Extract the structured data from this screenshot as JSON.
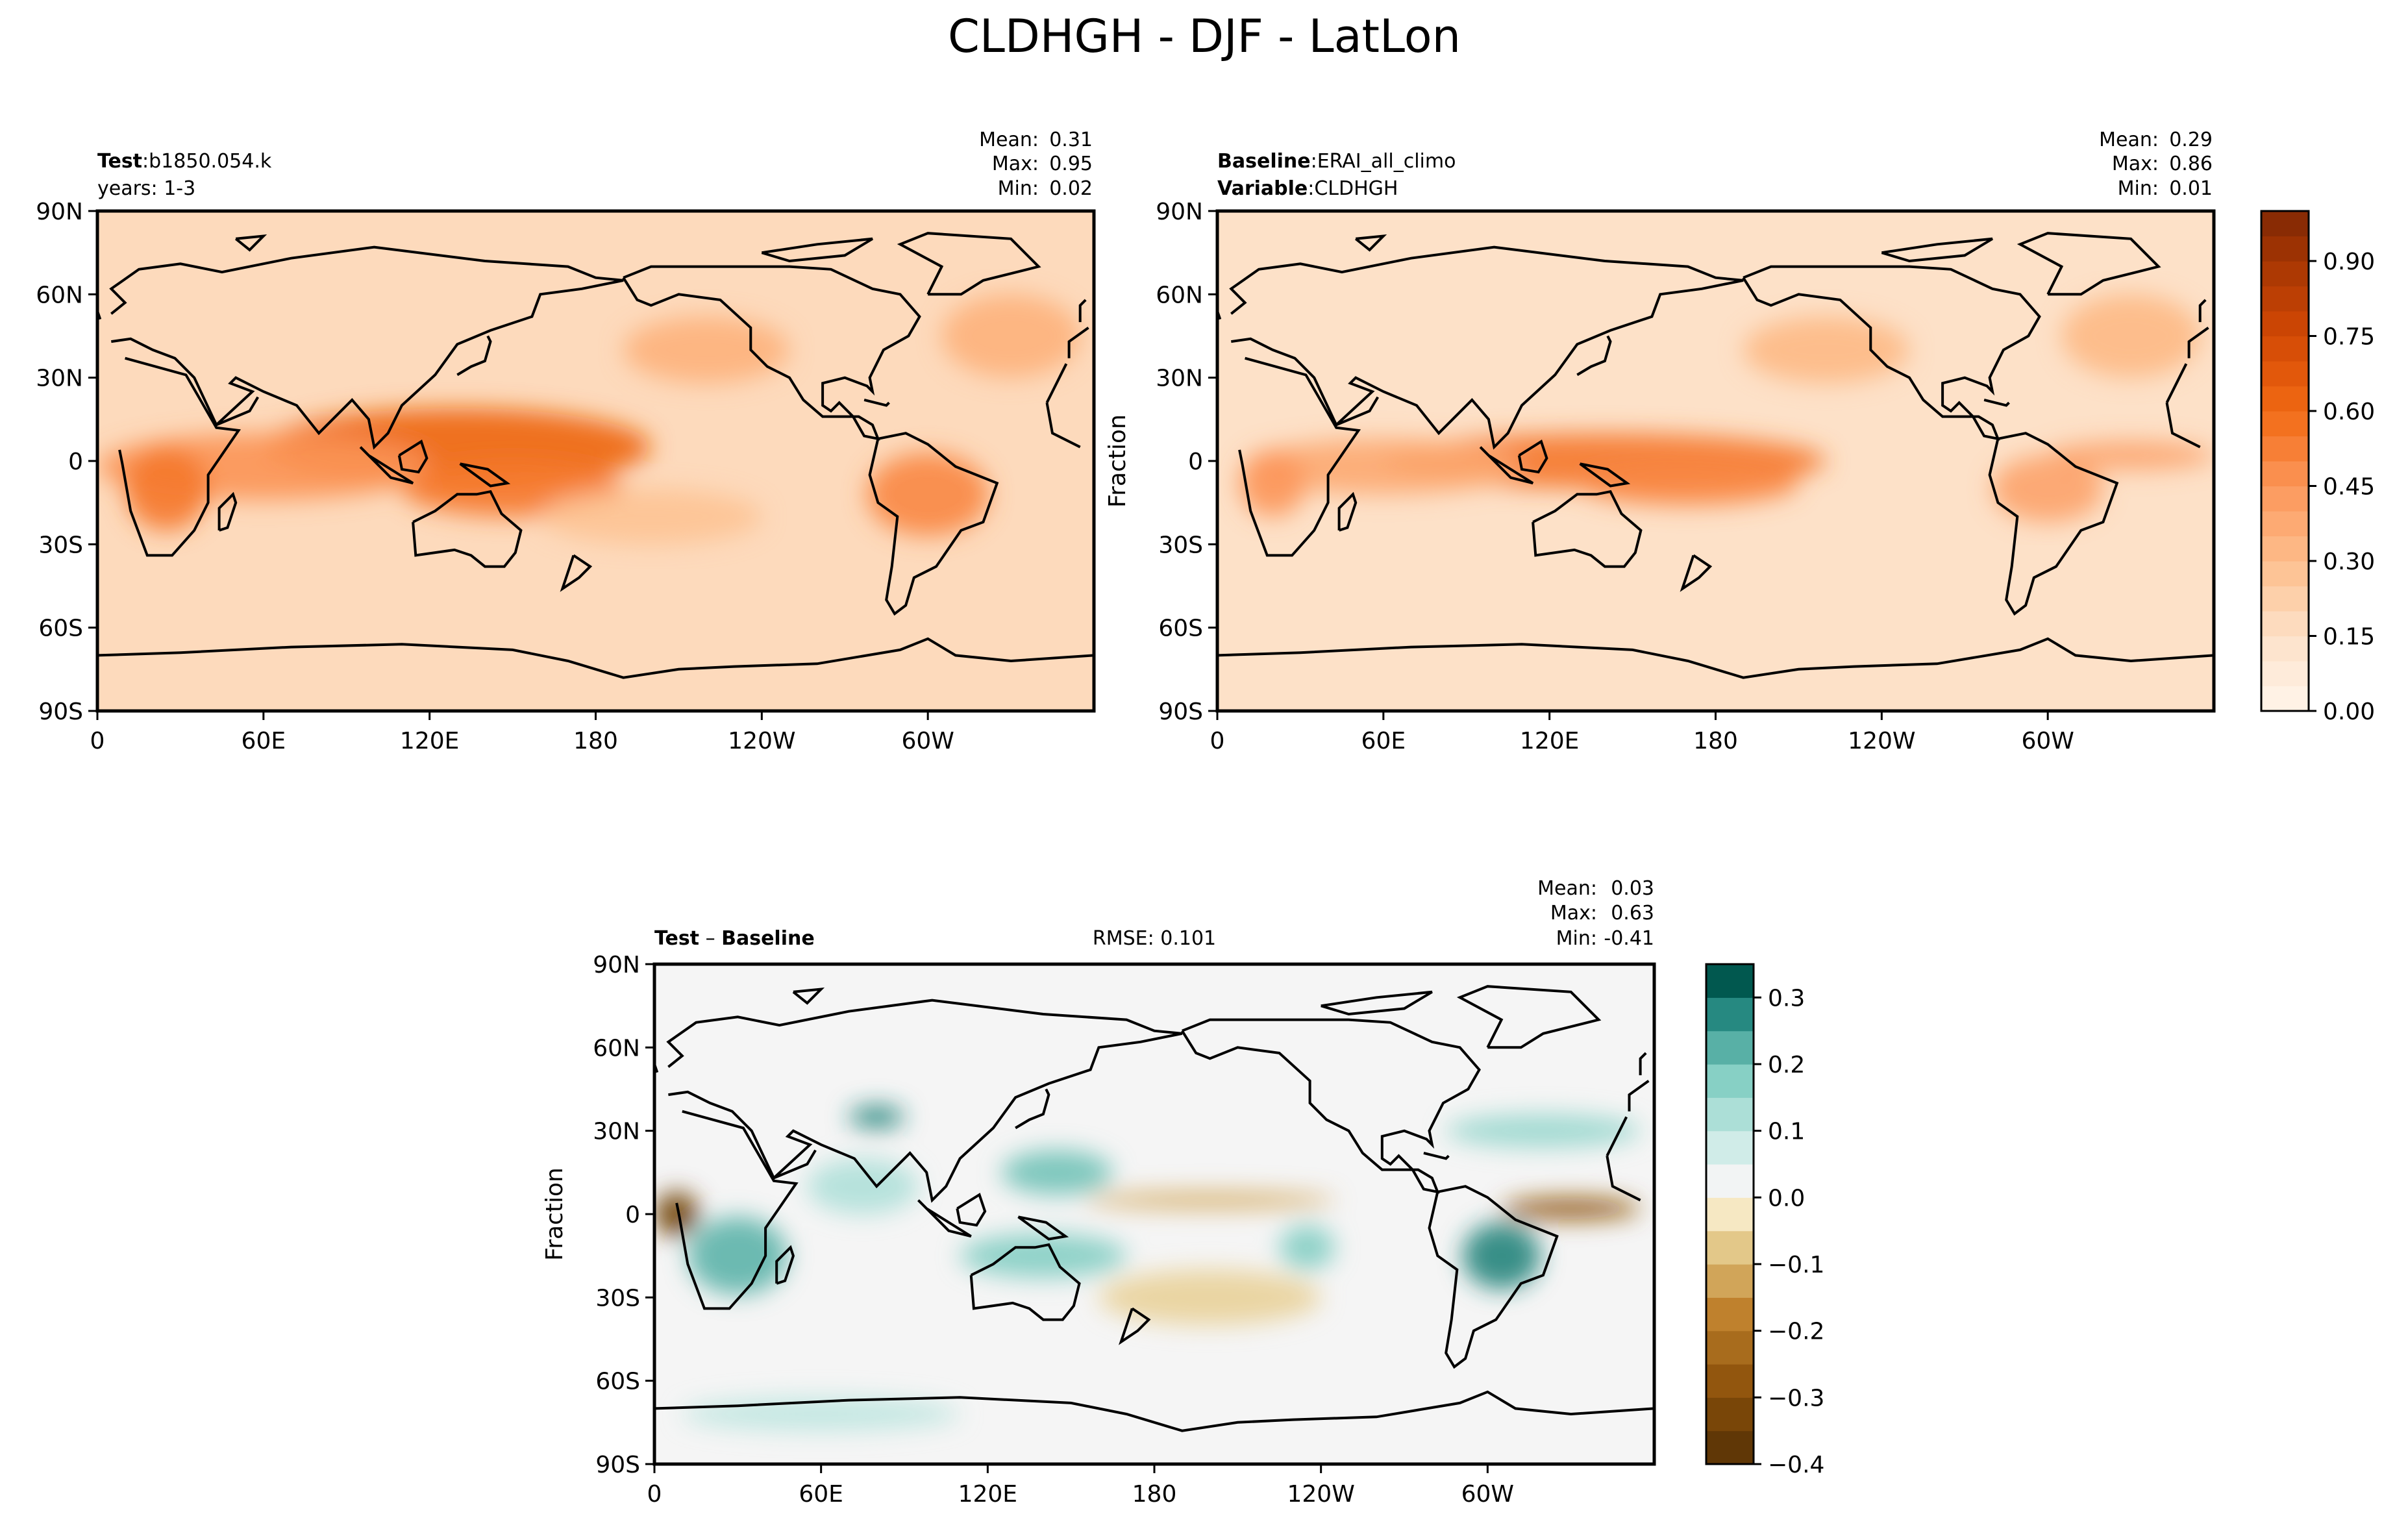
{
  "figure": {
    "title": "CLDHGH - DJF - LatLon"
  },
  "chart_data": [
    {
      "id": "test",
      "type": "heatmap",
      "title": "",
      "left_label_bold": "Test",
      "left_label_text": "b1850.054.k",
      "left_label_line2": "years: 1-3",
      "stats": [
        {
          "label": "Mean:",
          "value": "0.31"
        },
        {
          "label": "Max:",
          "value": "0.95"
        },
        {
          "label": "Min:",
          "value": "0.02"
        }
      ],
      "xlabel": "",
      "ylabel": "",
      "x_ticks": [
        "0",
        "60E",
        "120E",
        "180",
        "120W",
        "60W"
      ],
      "x_tick_values": [
        0,
        60,
        120,
        180,
        240,
        300
      ],
      "y_ticks": [
        "90N",
        "60N",
        "30N",
        "0",
        "30S",
        "60S",
        "90S"
      ],
      "y_tick_values": [
        90,
        60,
        30,
        0,
        -30,
        -60,
        -90
      ],
      "xlim": [
        0,
        360
      ],
      "ylim": [
        -90,
        90
      ],
      "colormap": "Oranges",
      "vlim": [
        0,
        1
      ],
      "blobs": [
        {
          "lon": 130,
          "lat": 5,
          "rx": 70,
          "ry": 14,
          "v": 0.62
        },
        {
          "lon": 150,
          "lat": -10,
          "rx": 40,
          "ry": 10,
          "v": 0.55
        },
        {
          "lon": 60,
          "lat": -2,
          "rx": 60,
          "ry": 12,
          "v": 0.46
        },
        {
          "lon": 25,
          "lat": -10,
          "rx": 15,
          "ry": 15,
          "v": 0.55
        },
        {
          "lon": 300,
          "lat": -12,
          "rx": 22,
          "ry": 15,
          "v": 0.5
        },
        {
          "lon": 220,
          "lat": 40,
          "rx": 30,
          "ry": 12,
          "v": 0.35
        },
        {
          "lon": 330,
          "lat": 45,
          "rx": 25,
          "ry": 15,
          "v": 0.35
        },
        {
          "lon": 200,
          "lat": -20,
          "rx": 40,
          "ry": 10,
          "v": 0.28
        }
      ],
      "base_value": 0.18
    },
    {
      "id": "baseline",
      "type": "heatmap",
      "title": "",
      "left_label_bold": "Baseline",
      "left_label_text": "ERAI_all_climo",
      "left_label_bold2": "Variable",
      "left_label_text2": "CLDHGH",
      "stats": [
        {
          "label": "Mean:",
          "value": "0.29"
        },
        {
          "label": "Max:",
          "value": "0.86"
        },
        {
          "label": "Min:",
          "value": "0.01"
        }
      ],
      "xlabel": "",
      "ylabel": "Fraction",
      "x_ticks": [
        "0",
        "60E",
        "120E",
        "180",
        "120W",
        "60W"
      ],
      "x_tick_values": [
        0,
        60,
        120,
        180,
        240,
        300
      ],
      "y_ticks": [
        "90N",
        "60N",
        "30N",
        "0",
        "30S",
        "60S",
        "90S"
      ],
      "y_tick_values": [
        90,
        60,
        30,
        0,
        -30,
        -60,
        -90
      ],
      "xlim": [
        0,
        360
      ],
      "ylim": [
        -90,
        90
      ],
      "colormap": "Oranges",
      "vlim": [
        0,
        1
      ],
      "blobs": [
        {
          "lon": 140,
          "lat": 0,
          "rx": 80,
          "ry": 10,
          "v": 0.55
        },
        {
          "lon": 170,
          "lat": -8,
          "rx": 40,
          "ry": 8,
          "v": 0.5
        },
        {
          "lon": 60,
          "lat": -2,
          "rx": 50,
          "ry": 10,
          "v": 0.38
        },
        {
          "lon": 20,
          "lat": -8,
          "rx": 12,
          "ry": 12,
          "v": 0.45
        },
        {
          "lon": 300,
          "lat": -10,
          "rx": 20,
          "ry": 12,
          "v": 0.4
        },
        {
          "lon": 330,
          "lat": 2,
          "rx": 30,
          "ry": 5,
          "v": 0.4
        },
        {
          "lon": 220,
          "lat": 40,
          "rx": 30,
          "ry": 12,
          "v": 0.32
        },
        {
          "lon": 330,
          "lat": 45,
          "rx": 25,
          "ry": 15,
          "v": 0.32
        }
      ],
      "base_value": 0.15
    },
    {
      "id": "diff",
      "type": "heatmap",
      "title": "",
      "left_label_bold": "Test",
      "left_label_text": " – ",
      "left_label_bold_b": "Baseline",
      "rmse_label": "RMSE: 0.101",
      "stats": [
        {
          "label": "Mean:",
          "value": "0.03"
        },
        {
          "label": "Max:",
          "value": "0.63"
        },
        {
          "label": "Min:",
          "value": "-0.41"
        }
      ],
      "xlabel": "",
      "ylabel": "Fraction",
      "x_ticks": [
        "0",
        "60E",
        "120E",
        "180",
        "120W",
        "60W"
      ],
      "x_tick_values": [
        0,
        60,
        120,
        180,
        240,
        300
      ],
      "y_ticks": [
        "90N",
        "60N",
        "30N",
        "0",
        "30S",
        "60S",
        "90S"
      ],
      "y_tick_values": [
        90,
        60,
        30,
        0,
        -30,
        -60,
        -90
      ],
      "xlim": [
        0,
        360
      ],
      "ylim": [
        -90,
        90
      ],
      "colormap": "BrBG",
      "vlim": [
        -0.4,
        0.35
      ],
      "blobs": [
        {
          "lon": 30,
          "lat": -15,
          "rx": 18,
          "ry": 14,
          "v": 0.22
        },
        {
          "lon": 8,
          "lat": 0,
          "rx": 8,
          "ry": 8,
          "v": -0.35
        },
        {
          "lon": 75,
          "lat": 10,
          "rx": 20,
          "ry": 10,
          "v": 0.12
        },
        {
          "lon": 140,
          "lat": -15,
          "rx": 30,
          "ry": 8,
          "v": 0.18
        },
        {
          "lon": 145,
          "lat": 15,
          "rx": 20,
          "ry": 8,
          "v": 0.2
        },
        {
          "lon": 80,
          "lat": 35,
          "rx": 10,
          "ry": 4,
          "v": 0.28
        },
        {
          "lon": 235,
          "lat": -12,
          "rx": 10,
          "ry": 8,
          "v": 0.18
        },
        {
          "lon": 305,
          "lat": -15,
          "rx": 14,
          "ry": 12,
          "v": 0.28
        },
        {
          "lon": 330,
          "lat": 2,
          "rx": 25,
          "ry": 4,
          "v": -0.28
        },
        {
          "lon": 200,
          "lat": 5,
          "rx": 45,
          "ry": 3,
          "v": -0.12
        },
        {
          "lon": 320,
          "lat": 30,
          "rx": 35,
          "ry": 6,
          "v": 0.15
        },
        {
          "lon": 60,
          "lat": -72,
          "rx": 50,
          "ry": 6,
          "v": 0.1
        },
        {
          "lon": 200,
          "lat": -30,
          "rx": 40,
          "ry": 10,
          "v": -0.06
        }
      ],
      "base_value": 0.02
    }
  ],
  "colorbars": [
    {
      "id": "orange-colorbar",
      "colormap": "Oranges",
      "vlim": [
        0,
        1
      ],
      "levels": 20,
      "tick_values": [
        0.0,
        0.15,
        0.3,
        0.45,
        0.6,
        0.75,
        0.9
      ],
      "tick_labels": [
        "0.00",
        "0.15",
        "0.30",
        "0.45",
        "0.60",
        "0.75",
        "0.90"
      ]
    },
    {
      "id": "diff-colorbar",
      "colormap": "BrBG",
      "vlim": [
        -0.4,
        0.35
      ],
      "levels": 15,
      "tick_values": [
        0.3,
        0.2,
        0.1,
        0.0,
        -0.1,
        -0.2,
        -0.3,
        -0.4
      ],
      "tick_labels": [
        "0.3",
        "0.2",
        "0.1",
        "0.0",
        "−0.1",
        "−0.2",
        "−0.3",
        "−0.4"
      ]
    }
  ]
}
